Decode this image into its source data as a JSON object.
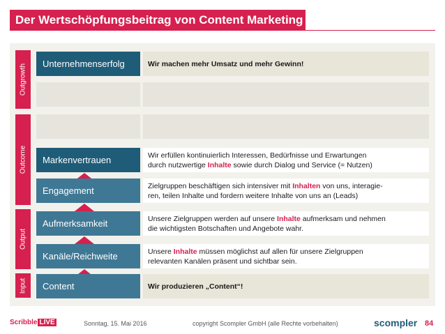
{
  "title": "Der Wertschöpfungsbeitrag von Content Marketing",
  "side_labels": {
    "outgrowth": "Outgrowth",
    "outcome": "Outcome",
    "output": "Output",
    "input": "Input"
  },
  "rows": {
    "unternehmenserfolg": {
      "label": "Unternehmenserfolg",
      "desc": "Wir machen mehr Umsatz und mehr Gewinn!"
    },
    "markenvertrauen": {
      "label": "Markenvertrauen",
      "desc_line1": "Wir erfüllen kontinuierlich Interessen, Bedürfnisse und Erwartungen",
      "desc_line2_pre": "durch nutzwertige ",
      "desc_line2_hl": "Inhalte",
      "desc_line2_post": " sowie durch Dialog und Service  (= Nutzen)"
    },
    "engagement": {
      "label": "Engagement",
      "desc_line1_pre": "Zielgruppen beschäftigen sich intensiver mit ",
      "desc_line1_hl": "Inhalten",
      "desc_line1_post": " von uns, interagie-",
      "desc_line2": "ren, teilen Inhalte und fordern weitere Inhalte von uns an (Leads)"
    },
    "aufmerksamkeit": {
      "label": "Aufmerksamkeit",
      "desc_line1_pre": "Unsere Zielgruppen werden auf unsere ",
      "desc_line1_hl": "Inhalte",
      "desc_line1_post": " aufmerksam und nehmen",
      "desc_line2": "die wichtigsten Botschaften und Angebote wahr."
    },
    "kanaele": {
      "label": "Kanäle/Reichweite",
      "desc_line1_pre": "Unsere ",
      "desc_line1_hl": "Inhalte",
      "desc_line1_post": " müssen möglichst auf allen für unsere Zielgruppen",
      "desc_line2": "relevanten Kanälen präsent und sichtbar sein."
    },
    "content": {
      "label": "Content",
      "desc": "Wir produzieren „Content“!"
    }
  },
  "footer": {
    "date": "Sonntag, 15. Mai 2016",
    "copyright": "copyright Scompler GmbH (alle Rechte vorbehalten)",
    "page": "84",
    "logo_left_main": "Scribble",
    "logo_left_live": "LIVE",
    "logo_right": "scompler"
  },
  "colors": {
    "accent": "#d6204f",
    "dark_blue": "#1f5c78",
    "mid_blue": "#3f7895",
    "panel": "#f2f1ec"
  }
}
